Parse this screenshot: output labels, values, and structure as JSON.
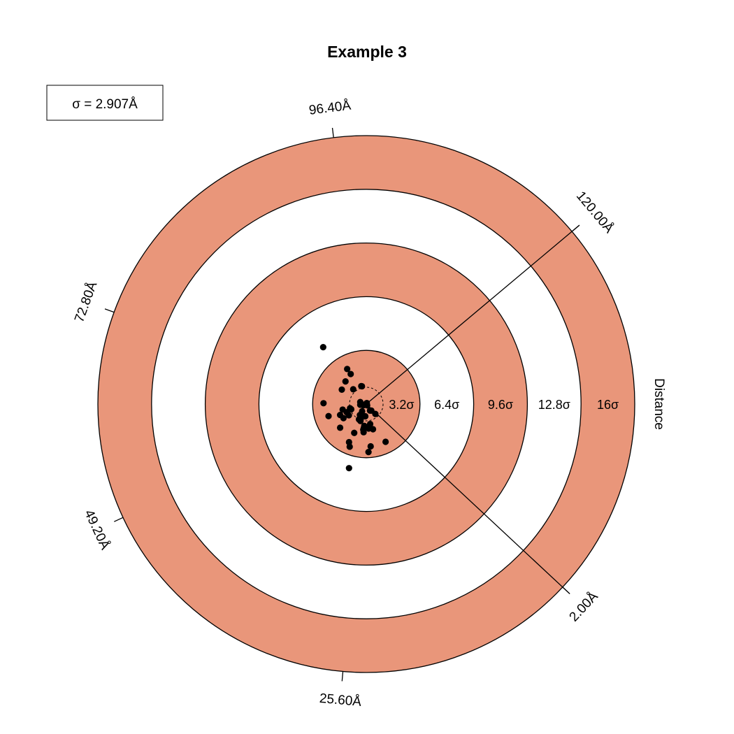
{
  "chart_data": {
    "type": "scatter",
    "title": "Example 3",
    "legend": {
      "text": "σ = 2.907Å",
      "position": "top-left"
    },
    "axis_label": "Distance",
    "sigma_angstrom": 2.907,
    "band_color": "#e9967a",
    "rings": [
      {
        "radius_sigma": 3.2,
        "label": "3.2σ",
        "filled": true
      },
      {
        "radius_sigma": 6.4,
        "label": "6.4σ",
        "filled": false
      },
      {
        "radius_sigma": 9.6,
        "label": "9.6σ",
        "filled": true
      },
      {
        "radius_sigma": 12.8,
        "label": "12.8σ",
        "filled": false
      },
      {
        "radius_sigma": 16,
        "label": "16σ",
        "filled": true
      }
    ],
    "inner_circle_sigma": 1.0,
    "scale_range_angstrom": [
      2.0,
      120.0
    ],
    "angular_ticks": [
      {
        "label": "2.00Å",
        "angle_deg": -43
      },
      {
        "label": "25.60Å",
        "angle_deg": -95
      },
      {
        "label": "49.20Å",
        "angle_deg": -155
      },
      {
        "label": "72.80Å",
        "angle_deg": 160
      },
      {
        "label": "96.40Å",
        "angle_deg": 97
      },
      {
        "label": "120.00Å",
        "angle_deg": 40
      }
    ],
    "points": [
      [
        -0.36,
        -0.04
      ],
      [
        -0.36,
        0.12
      ],
      [
        -0.18,
        -0.08
      ],
      [
        0.0,
        0.03
      ],
      [
        0.05,
        -0.08
      ],
      [
        -0.25,
        -0.43
      ],
      [
        -0.38,
        -0.65
      ],
      [
        -0.06,
        -0.73
      ],
      [
        0.3,
        -0.39
      ],
      [
        0.22,
        -0.39
      ],
      [
        0.54,
        -0.59
      ],
      [
        -0.34,
        -0.92
      ],
      [
        -0.16,
        -1.68
      ],
      [
        0.14,
        -1.46
      ],
      [
        -1.36,
        -0.84
      ],
      [
        -1.04,
        -0.67
      ],
      [
        -1.41,
        -0.33
      ],
      [
        -1.17,
        -0.49
      ],
      [
        -0.97,
        -0.25
      ],
      [
        -0.9,
        -0.31
      ],
      [
        -0.44,
        -0.91
      ],
      [
        -0.35,
        -1.01
      ],
      [
        -0.12,
        -1.3
      ],
      [
        -0.18,
        -1.53
      ],
      [
        -0.15,
        -1.43
      ],
      [
        -0.72,
        -1.72
      ],
      [
        0.23,
        -1.19
      ],
      [
        0.4,
        -1.5
      ],
      [
        -0.78,
        0.88
      ],
      [
        -1.46,
        0.86
      ],
      [
        -1.24,
        1.35
      ],
      [
        -0.93,
        1.79
      ],
      [
        -1.14,
        2.09
      ],
      [
        -0.3,
        1.07
      ],
      [
        -0.26,
        1.06
      ],
      [
        -1.56,
        -0.65
      ],
      [
        -1.56,
        -1.41
      ],
      [
        -1.03,
        -2.27
      ],
      [
        -0.99,
        -2.54
      ],
      [
        0.26,
        -2.52
      ],
      [
        0.13,
        -2.86
      ],
      [
        1.15,
        -2.25
      ],
      [
        -2.25,
        -0.72
      ],
      [
        -2.55,
        0.05
      ],
      [
        -1.03,
        -3.82
      ],
      [
        -2.57,
        3.39
      ],
      [
        0.03,
        0.06
      ]
    ]
  }
}
